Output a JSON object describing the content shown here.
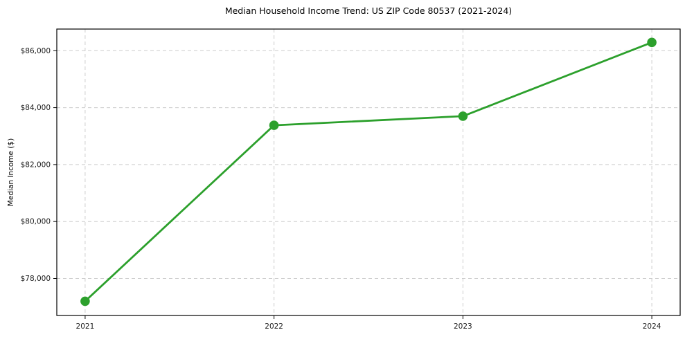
{
  "chart_data": {
    "type": "line",
    "title": "Median Household Income Trend: US ZIP Code 80537 (2021-2024)",
    "xlabel": "",
    "ylabel": "Median Income ($)",
    "x": [
      2021,
      2022,
      2023,
      2024
    ],
    "series": [
      {
        "name": "Median Household Income",
        "values": [
          77200,
          83380,
          83700,
          86290
        ]
      }
    ],
    "x_tick_labels": [
      "2021",
      "2022",
      "2023",
      "2024"
    ],
    "y_ticks": [
      78000,
      80000,
      82000,
      84000,
      86000
    ],
    "y_tick_labels": [
      "$78,000",
      "$80,000",
      "$82,000",
      "$84,000",
      "$86,000"
    ],
    "xlim": [
      2020.85,
      2024.15
    ],
    "ylim": [
      76700,
      86760
    ],
    "grid": true,
    "grid_style": "dashed",
    "legend": false,
    "legend_position": "none",
    "line_color": "#2ca02c",
    "marker": "circle",
    "marker_size": 6.8,
    "line_width": 2.8,
    "grid_color": "#cccccc",
    "frame_color": "#000000",
    "background_color": "#ffffff"
  }
}
